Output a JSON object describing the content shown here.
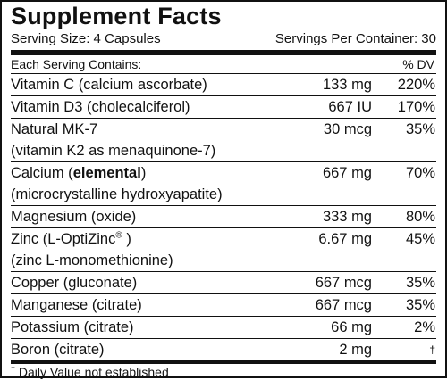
{
  "title": "Supplement Facts",
  "serving_size": "Serving Size: 4 Capsules",
  "servings_per_container": "Servings Per Container: 30",
  "table": {
    "header": [
      "Each Serving Contains:",
      "% DV"
    ],
    "rows": [
      {
        "name": [
          [
            "Vitamin C (calcium ascorbate)"
          ]
        ],
        "amount": "133 mg",
        "dv": "220%"
      },
      {
        "name": [
          [
            "Vitamin D3 (cholecalciferol)"
          ]
        ],
        "amount": "667 IU",
        "dv": "170%"
      },
      {
        "name": [
          [
            "Natural MK-7"
          ],
          [
            "(vitamin K2 as menaquinone-7)"
          ]
        ],
        "amount": "30 mcg",
        "dv": "35%"
      },
      {
        "name": [
          [
            "Calcium (",
            {
              "text": "elemental",
              "bold": true
            },
            ")"
          ],
          [
            "(microcrystalline hydroxyapatite)"
          ]
        ],
        "amount": "667 mg",
        "dv": "70%"
      },
      {
        "name": [
          [
            "Magnesium (oxide)"
          ]
        ],
        "amount": "333 mg",
        "dv": "80%"
      },
      {
        "name": [
          [
            "Zinc (L-OptiZinc",
            {
              "text": "®",
              "sup": true
            },
            " )"
          ],
          [
            "(zinc L-monomethionine)"
          ]
        ],
        "amount": "6.67 mg",
        "dv": "45%"
      },
      {
        "name": [
          [
            "Copper (gluconate)"
          ]
        ],
        "amount": "667 mcg",
        "dv": "35%"
      },
      {
        "name": [
          [
            "Manganese (citrate)"
          ]
        ],
        "amount": "667 mcg",
        "dv": "35%"
      },
      {
        "name": [
          [
            "Potassium (citrate)"
          ]
        ],
        "amount": "66 mg",
        "dv": "2%"
      },
      {
        "name": [
          [
            "Boron (citrate)"
          ]
        ],
        "amount": "2 mg",
        "dv": "†"
      }
    ]
  },
  "footnote": {
    "symbol": "†",
    "text": "Daily Value not established"
  }
}
